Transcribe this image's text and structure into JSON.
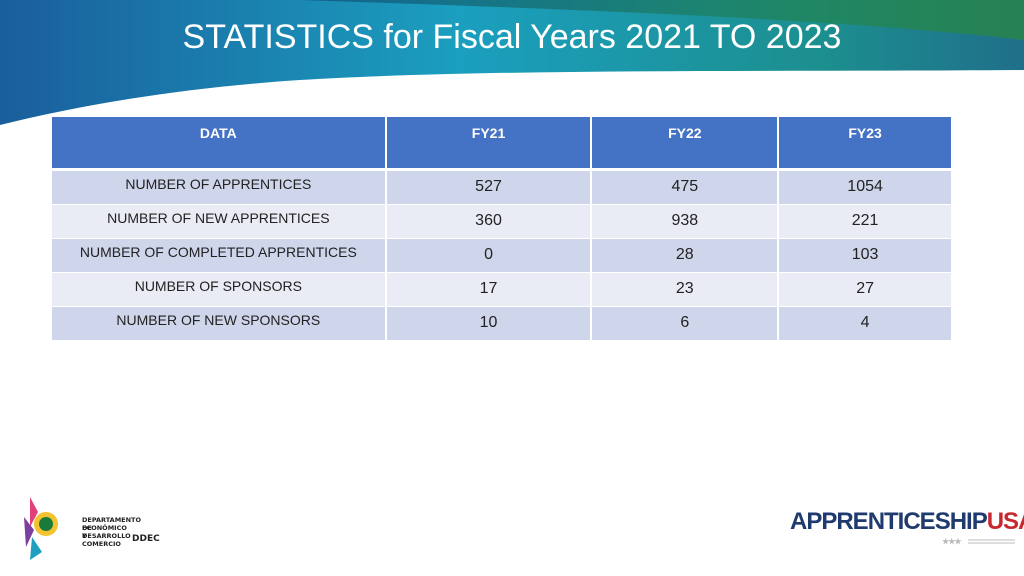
{
  "header": {
    "title": "STATISTICS for Fiscal Years 2021 TO 2023"
  },
  "table": {
    "columns": [
      "DATA",
      "FY21",
      "FY22",
      "FY23"
    ],
    "rows": [
      [
        "NUMBER OF APPRENTICES",
        527,
        475,
        1054
      ],
      [
        "NUMBER OF NEW APPRENTICES",
        360,
        938,
        221
      ],
      [
        "NUMBER OF COMPLETED APPRENTICES",
        0,
        28,
        103
      ],
      [
        "NUMBER OF SPONSORS",
        17,
        23,
        27
      ],
      [
        "NUMBER OF NEW SPONSORS",
        10,
        6,
        4
      ]
    ]
  },
  "footer": {
    "left_logo": {
      "line1": "DEPARTAMENTO DE DESARROLLO",
      "line2": "ECONÓMICO Y COMERCIO",
      "line3": "DDEC"
    },
    "right_logo": {
      "part1": "APPRENTICESHIP",
      "part2": "USA"
    }
  }
}
